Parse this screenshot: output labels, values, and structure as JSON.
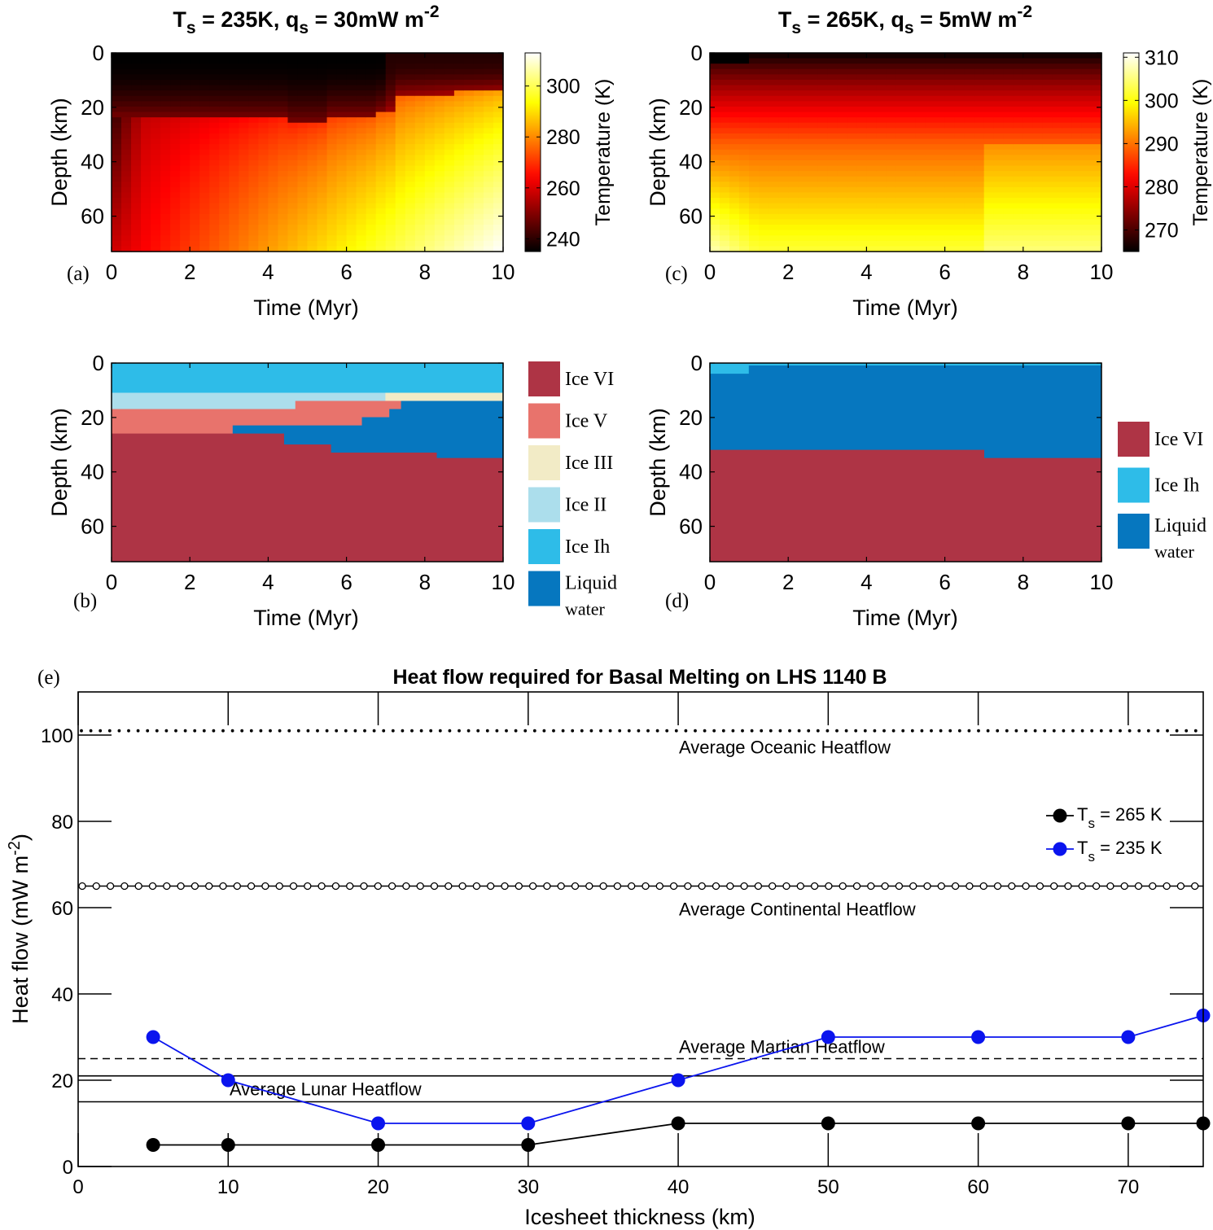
{
  "chart_data": [
    {
      "id": "a",
      "type": "heatmap",
      "panel_label": "(a)",
      "title_prefix": "T",
      "title_sub1": "s",
      "title_mid": " = 235K, q",
      "title_sub2": "s",
      "title_mid2": " = 30mW m",
      "title_sup": "-2",
      "xlabel": "Time (Myr)",
      "ylabel": "Depth (km)",
      "xlim": [
        0,
        10
      ],
      "ylim": [
        0,
        73
      ],
      "xticks": [
        "0",
        "2",
        "4",
        "6",
        "8",
        "10"
      ],
      "yticks": [
        "0",
        "20",
        "40",
        "60"
      ],
      "colorbar": {
        "label": "Temperature (K)",
        "range": [
          235,
          313
        ],
        "ticks": [
          "240",
          "260",
          "280",
          "300"
        ],
        "tick_values": [
          240,
          260,
          280,
          300
        ],
        "colormap": "hot"
      },
      "cold_layer_depth_km": [
        [
          0,
          24
        ],
        [
          4.4,
          24
        ],
        [
          4.4,
          26
        ],
        [
          5.6,
          26
        ],
        [
          5.6,
          23
        ],
        [
          6.8,
          23
        ],
        [
          6.8,
          21
        ],
        [
          7.3,
          21
        ],
        [
          7.3,
          16
        ],
        [
          8.5,
          15
        ],
        [
          10,
          14
        ]
      ],
      "surface_temp_K": 235,
      "base_temp_K_start": 258,
      "base_temp_K_end": 313
    },
    {
      "id": "c",
      "type": "heatmap",
      "panel_label": "(c)",
      "title_prefix": "T",
      "title_sub1": "s",
      "title_mid": " = 265K, q",
      "title_sub2": "s",
      "title_mid2": " = 5mW m",
      "title_sup": "-2",
      "xlabel": "Time (Myr)",
      "ylabel": "Depth (km)",
      "xlim": [
        0,
        10
      ],
      "ylim": [
        0,
        73
      ],
      "xticks": [
        "0",
        "2",
        "4",
        "6",
        "8",
        "10"
      ],
      "yticks": [
        "0",
        "20",
        "40",
        "60"
      ],
      "colorbar": {
        "label": "Temperature (K)",
        "range": [
          265,
          311
        ],
        "ticks": [
          "270",
          "280",
          "290",
          "300",
          "310"
        ],
        "tick_values": [
          270,
          280,
          290,
          300,
          310
        ],
        "colormap": "hot"
      },
      "surface_temp_K": 265,
      "base_temp_K": 302
    },
    {
      "id": "b",
      "type": "area",
      "panel_label": "(b)",
      "xlabel": "Time (Myr)",
      "ylabel": "Depth (km)",
      "xlim": [
        0,
        10
      ],
      "ylim": [
        0,
        73
      ],
      "xticks": [
        "0",
        "2",
        "4",
        "6",
        "8",
        "10"
      ],
      "yticks": [
        "0",
        "20",
        "40",
        "60"
      ],
      "legend": [
        {
          "label": "Ice VI",
          "color": "#ae3445"
        },
        {
          "label": "Ice V",
          "color": "#e8736c"
        },
        {
          "label": "Ice III",
          "color": "#f2ebc6"
        },
        {
          "label": "Ice II",
          "color": "#acdeec"
        },
        {
          "label": "Ice Ih",
          "color": "#2ebce8"
        },
        {
          "label": "Liquid",
          "label2": "water",
          "color": "#0677bf"
        }
      ],
      "phase_regions": [
        {
          "phase": "Ice Ih",
          "color": "#2ebce8",
          "polygon": [
            [
              0,
              0
            ],
            [
              10,
              0
            ],
            [
              10,
              11
            ],
            [
              0,
              11
            ]
          ]
        },
        {
          "phase": "Ice II",
          "color": "#acdeec",
          "polygon": [
            [
              0,
              11
            ],
            [
              7,
              11
            ],
            [
              7,
              17
            ],
            [
              0,
              17
            ]
          ]
        },
        {
          "phase": "Ice III",
          "color": "#f2ebc6",
          "polygon": [
            [
              7,
              11
            ],
            [
              10,
              11
            ],
            [
              10,
              14
            ],
            [
              7,
              14
            ]
          ]
        },
        {
          "phase": "Ice V",
          "color": "#e8736c",
          "polygon": [
            [
              0,
              17
            ],
            [
              4.7,
              17
            ],
            [
              4.7,
              14
            ],
            [
              7,
              14
            ],
            [
              7,
              14
            ],
            [
              7.4,
              14
            ],
            [
              7.4,
              17
            ],
            [
              7.1,
              17
            ],
            [
              7.1,
              20
            ],
            [
              6.4,
              20
            ],
            [
              6.4,
              23
            ],
            [
              3.1,
              23
            ],
            [
              3.1,
              26
            ],
            [
              0,
              26
            ]
          ]
        },
        {
          "phase": "Liquid water",
          "color": "#0677bf",
          "polygon": [
            [
              3.1,
              23
            ],
            [
              6.4,
              23
            ],
            [
              6.4,
              20
            ],
            [
              7.1,
              20
            ],
            [
              7.1,
              17
            ],
            [
              7.4,
              17
            ],
            [
              7.4,
              14
            ],
            [
              10,
              14
            ],
            [
              10,
              35
            ],
            [
              8.3,
              35
            ],
            [
              8.3,
              33
            ],
            [
              5.6,
              33
            ],
            [
              5.6,
              30
            ],
            [
              4.4,
              30
            ],
            [
              4.4,
              26
            ],
            [
              3.1,
              26
            ]
          ]
        },
        {
          "phase": "Ice VI",
          "color": "#ae3445",
          "polygon": [
            [
              0,
              26
            ],
            [
              4.4,
              26
            ],
            [
              4.4,
              30
            ],
            [
              5.6,
              30
            ],
            [
              5.6,
              33
            ],
            [
              8.3,
              33
            ],
            [
              8.3,
              35
            ],
            [
              10,
              35
            ],
            [
              10,
              73
            ],
            [
              0,
              73
            ]
          ]
        }
      ]
    },
    {
      "id": "d",
      "type": "area",
      "panel_label": "(d)",
      "xlabel": "Time (Myr)",
      "ylabel": "Depth (km)",
      "xlim": [
        0,
        10
      ],
      "ylim": [
        0,
        73
      ],
      "xticks": [
        "0",
        "2",
        "4",
        "6",
        "8",
        "10"
      ],
      "yticks": [
        "0",
        "20",
        "40",
        "60"
      ],
      "legend": [
        {
          "label": "Ice VI",
          "color": "#ae3445"
        },
        {
          "label": "Ice Ih",
          "color": "#2ebce8"
        },
        {
          "label": "Liquid",
          "label2": "water",
          "color": "#0677bf"
        }
      ],
      "phase_regions": [
        {
          "phase": "Ice Ih",
          "color": "#2ebce8",
          "polygon": [
            [
              0,
              0
            ],
            [
              10,
              0
            ],
            [
              10,
              1
            ],
            [
              1,
              1
            ],
            [
              1,
              4
            ],
            [
              0,
              4
            ]
          ]
        },
        {
          "phase": "Liquid water",
          "color": "#0677bf",
          "polygon": [
            [
              0,
              4
            ],
            [
              1,
              4
            ],
            [
              1,
              1
            ],
            [
              10,
              1
            ],
            [
              10,
              35
            ],
            [
              7,
              35
            ],
            [
              7,
              32
            ],
            [
              0,
              32
            ]
          ]
        },
        {
          "phase": "Ice VI",
          "color": "#ae3445",
          "polygon": [
            [
              0,
              32
            ],
            [
              7,
              32
            ],
            [
              7,
              35
            ],
            [
              10,
              35
            ],
            [
              10,
              73
            ],
            [
              0,
              73
            ]
          ]
        }
      ]
    },
    {
      "id": "e",
      "type": "line",
      "panel_label": "(e)",
      "title": "Heat flow required for Basal Melting on LHS 1140 B",
      "xlabel": "Icesheet thickness (km)",
      "ylabel_main": "Heat flow (mW m",
      "ylabel_sup": "-2",
      "ylabel_close": ")",
      "xlim": [
        0,
        75
      ],
      "ylim": [
        0,
        110
      ],
      "xticks": [
        "0",
        "10",
        "20",
        "30",
        "40",
        "50",
        "60",
        "70"
      ],
      "yticks": [
        "0",
        "20",
        "40",
        "60",
        "80",
        "100"
      ],
      "series": [
        {
          "name": "T",
          "name_sub": "s",
          "name_rest": " = 265 K",
          "color": "#000000",
          "x": [
            5,
            10,
            20,
            30,
            40,
            50,
            60,
            70,
            75
          ],
          "y": [
            5,
            5,
            5,
            5,
            10,
            10,
            10,
            10,
            10
          ]
        },
        {
          "name": "T",
          "name_sub": "s",
          "name_rest": " = 235 K",
          "color": "#0a14ee",
          "x": [
            5,
            10,
            20,
            30,
            40,
            50,
            60,
            70,
            75
          ],
          "y": [
            30,
            20,
            10,
            10,
            20,
            30,
            30,
            30,
            35
          ]
        }
      ],
      "reference_lines": [
        {
          "label": "Average Oceanic Heatflow",
          "value": 101,
          "style": "dotted"
        },
        {
          "label": "Average Continental Heatflow",
          "value": 65,
          "style": "circles"
        },
        {
          "label": "Average Martian Heatflow",
          "value": 25,
          "style": "dashed"
        },
        {
          "label": "Average Lunar Heatflow",
          "value": 21,
          "style": "solid"
        },
        {
          "label": "",
          "value": 15,
          "style": "solid"
        }
      ]
    }
  ]
}
